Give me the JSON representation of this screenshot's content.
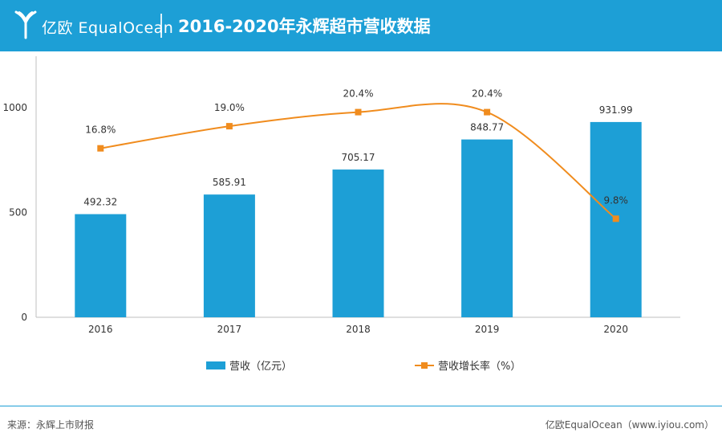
{
  "header": {
    "logo_text": "亿欧 EqualOcean",
    "title": "2016-2020年永辉超市营收数据"
  },
  "chart_data": {
    "type": "bar",
    "categories": [
      "2016",
      "2017",
      "2018",
      "2019",
      "2020"
    ],
    "series": [
      {
        "name": "营收（亿元）",
        "type": "bar",
        "axis": "left",
        "values": [
          492.32,
          585.91,
          705.17,
          848.77,
          931.99
        ],
        "labels": [
          "492.32",
          "585.91",
          "705.17",
          "848.77",
          "931.99"
        ]
      },
      {
        "name": "营收增长率（%）",
        "type": "line",
        "axis": "right",
        "values": [
          16.8,
          19.0,
          20.4,
          20.4,
          9.8
        ],
        "labels": [
          "16.8%",
          "19.0%",
          "20.4%",
          "20.4%",
          "9.8%"
        ]
      }
    ],
    "y_ticks": [
      "0",
      "500",
      "1000"
    ],
    "ylim": [
      0,
      1200
    ],
    "y2lim": [
      0,
      25
    ],
    "legend_position": "bottom",
    "colors": {
      "bar": "#1d9fd6",
      "line": "#f08c1e"
    }
  },
  "footer": {
    "source": "来源：永辉上市财报",
    "credit": "亿欧EqualOcean（www.iyiou.com）"
  }
}
